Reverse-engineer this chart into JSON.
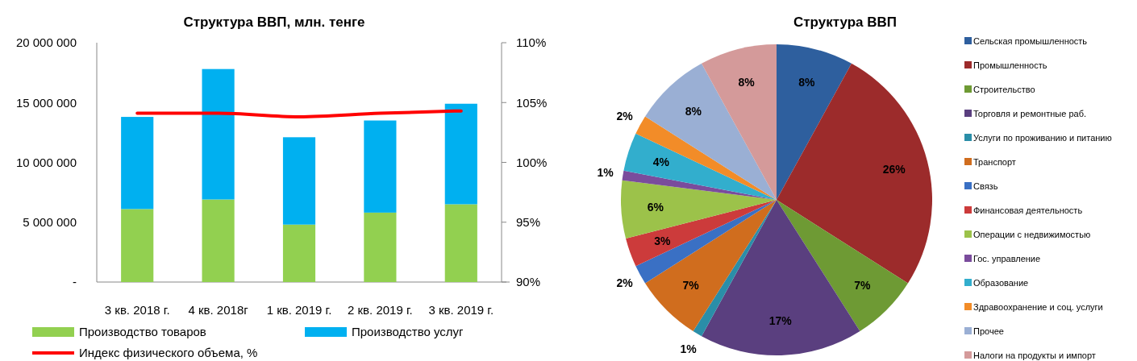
{
  "chart_data": [
    {
      "type": "bar",
      "title": "Структура ВВП, млн. тенге",
      "categories": [
        "3 кв. 2018 г.",
        "4 кв. 2018г",
        "1 кв. 2019 г.",
        "2 кв. 2019 г.",
        "3 кв. 2019 г."
      ],
      "stacked": true,
      "series": [
        {
          "name": "Производство товаров",
          "color": "#92d050",
          "values": [
            6100000,
            6900000,
            4800000,
            5800000,
            6500000
          ]
        },
        {
          "name": "Производство услуг",
          "color": "#00b0f0",
          "values": [
            7700000,
            10900000,
            7300000,
            7700000,
            8400000
          ]
        },
        {
          "name": "Индекс физического объема, %",
          "type": "line",
          "axis": "y2",
          "color": "#ff0000",
          "values": [
            104.1,
            104.1,
            103.8,
            104.1,
            104.3
          ]
        }
      ],
      "ylim": [
        0,
        20000000
      ],
      "yticks": [
        {
          "value": 0,
          "label": "-"
        },
        {
          "value": 5000000,
          "label": "5 000 000"
        },
        {
          "value": 10000000,
          "label": "10 000 000"
        },
        {
          "value": 15000000,
          "label": "15 000 000"
        },
        {
          "value": 20000000,
          "label": "20 000 000"
        }
      ],
      "y2lim": [
        90,
        110
      ],
      "y2ticks": [
        {
          "value": 90,
          "label": "90%"
        },
        {
          "value": 95,
          "label": "95%"
        },
        {
          "value": 100,
          "label": "100%"
        },
        {
          "value": 105,
          "label": "105%"
        },
        {
          "value": 110,
          "label": "110%"
        }
      ],
      "grid": false,
      "legend": "bottom"
    },
    {
      "type": "pie",
      "title": "Структура ВВП",
      "categories": [
        "Сельская промышленность",
        "Промышленность",
        "Строительство",
        "Торговля и ремонтные раб.",
        " Услуги по проживанию и питанию",
        "Транспорт",
        "Связь",
        "Финансовая деятельность",
        "Операции с недвижимостью",
        "Гос. управление",
        "Образование",
        "Здравоохранение и соц. услуги",
        "Прочее",
        "Налоги на продукты и импорт"
      ],
      "values": [
        8,
        26,
        7,
        17,
        1,
        7,
        2,
        3,
        6,
        1,
        4,
        2,
        8,
        8
      ],
      "colors": [
        "#2e5f9e",
        "#9c2b2b",
        "#6e9a34",
        "#5a3f7f",
        "#2a8ea8",
        "#d06d1e",
        "#3a70c4",
        "#cc3b3b",
        "#9cc24a",
        "#7a4c9c",
        "#32aecd",
        "#f28c28",
        "#9aafd4",
        "#d49a9a"
      ],
      "value_labels": [
        "8%",
        "26%",
        "7%",
        "17%",
        "1%",
        "7%",
        "2%",
        "3%",
        "6%",
        "1%",
        "4%",
        "2%",
        "8%",
        "8%"
      ],
      "legend": "right"
    }
  ]
}
